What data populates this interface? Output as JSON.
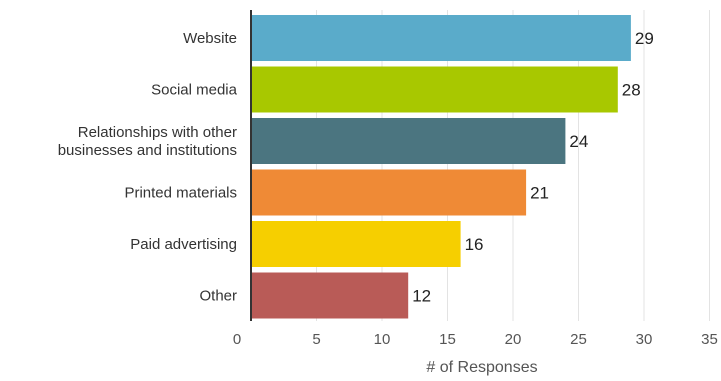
{
  "chart_data": {
    "type": "bar",
    "orientation": "horizontal",
    "categories": [
      "Website",
      "Social media",
      "Relationships with other\nbusinesses and institutions",
      "Printed materials",
      "Paid advertising",
      "Other"
    ],
    "values": [
      29,
      28,
      24,
      21,
      16,
      12
    ],
    "colors": [
      "#5aabca",
      "#a8c800",
      "#4b7580",
      "#ef8a36",
      "#f6cf00",
      "#b95b57"
    ],
    "xlabel": "# of Responses",
    "ylabel": "",
    "title": "",
    "xlim": [
      0,
      35
    ],
    "xticks": [
      0,
      5,
      10,
      15,
      20,
      25,
      30,
      35
    ],
    "grid": "vertical",
    "legend": "none"
  }
}
